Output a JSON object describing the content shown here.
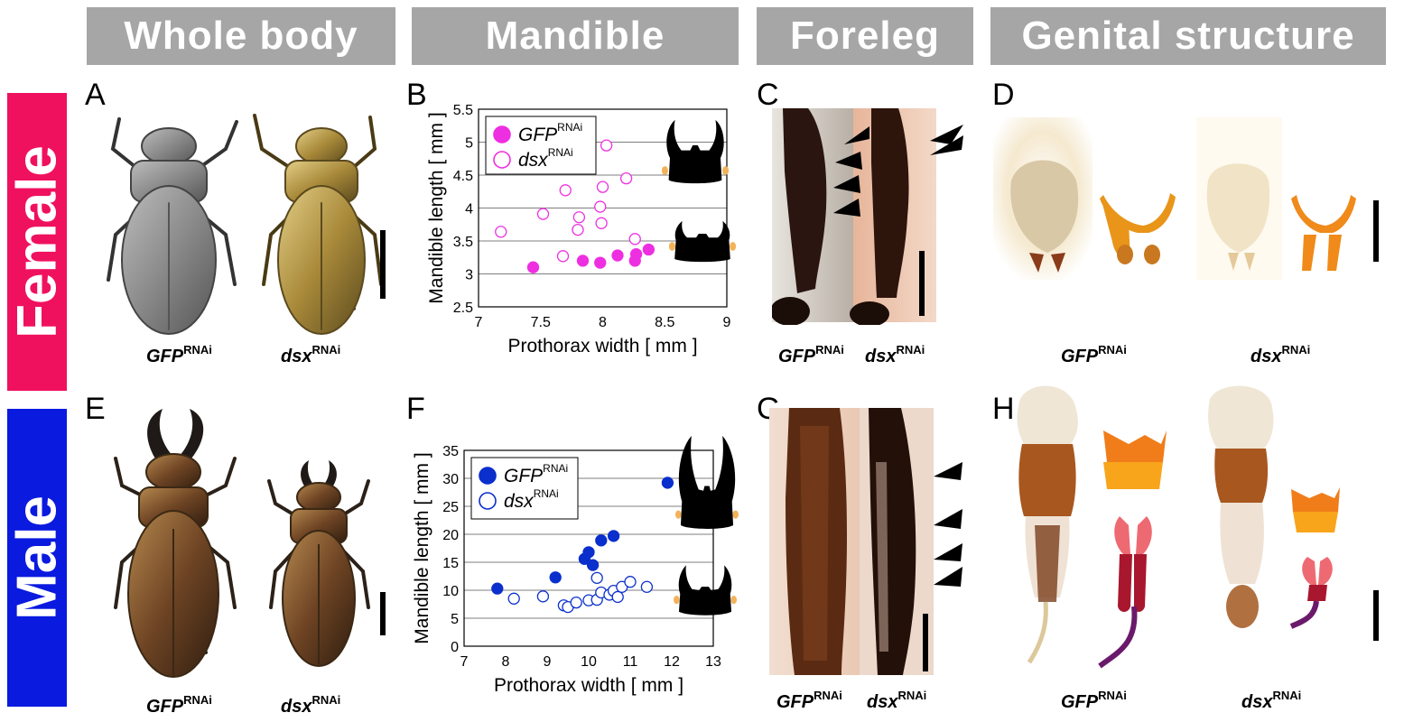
{
  "headers": {
    "whole_body": "Whole body",
    "mandible": "Mandible",
    "foreleg": "Foreleg",
    "genital": "Genital structure"
  },
  "rows": {
    "female": "Female",
    "male": "Male"
  },
  "row_colors": {
    "female": "#f0115e",
    "male": "#0a1adf"
  },
  "panels": [
    "A",
    "B",
    "C",
    "D",
    "E",
    "F",
    "G",
    "H"
  ],
  "gene_labels": {
    "gfp": "GFP",
    "dsx": "dsx",
    "rnai": "RNAi"
  },
  "chart_data": [
    {
      "type": "scatter",
      "panel": "B",
      "xlabel": "Prothorax width [ mm ]",
      "ylabel": "Mandible length [ mm ]",
      "xlim": [
        7,
        9
      ],
      "ylim": [
        2.5,
        5.5
      ],
      "xticks": [
        "7",
        "7.5",
        "8",
        "8.5",
        "9"
      ],
      "yticks": [
        "2.5",
        "3",
        "3.5",
        "4",
        "4.5",
        "5",
        "5.5"
      ],
      "grid": "horizontal",
      "legend_position": "top-left",
      "color": "#ee2fe1",
      "series": [
        {
          "name": "GFP",
          "name_sup": "RNAi",
          "filled": true,
          "x": [
            7.44,
            7.84,
            7.98,
            8.12,
            8.26,
            8.27,
            8.37
          ],
          "y": [
            3.1,
            3.2,
            3.17,
            3.28,
            3.2,
            3.3,
            3.37
          ]
        },
        {
          "name": "dsx",
          "name_sup": "RNAi",
          "filled": false,
          "x": [
            7.18,
            7.52,
            7.68,
            7.7,
            7.8,
            7.81,
            7.98,
            7.99,
            8.0,
            8.03,
            8.19,
            8.26
          ],
          "y": [
            3.64,
            3.91,
            3.27,
            4.27,
            3.67,
            3.86,
            4.02,
            3.77,
            4.32,
            4.95,
            4.45,
            3.53
          ]
        }
      ]
    },
    {
      "type": "scatter",
      "panel": "F",
      "xlabel": "Prothorax width [ mm ]",
      "ylabel": "Mandible length [ mm ]",
      "xlim": [
        7,
        13
      ],
      "ylim": [
        0,
        35
      ],
      "xticks": [
        "7",
        "8",
        "9",
        "10",
        "11",
        "12",
        "13"
      ],
      "yticks": [
        "0",
        "5",
        "10",
        "15",
        "20",
        "25",
        "30",
        "35"
      ],
      "grid": "horizontal",
      "legend_position": "top-left",
      "color": "#0b2fcc",
      "series": [
        {
          "name": "GFP",
          "name_sup": "RNAi",
          "filled": true,
          "x": [
            7.8,
            9.2,
            9.9,
            10.0,
            10.1,
            10.3,
            10.6,
            11.9
          ],
          "y": [
            10.3,
            12.3,
            15.6,
            16.8,
            14.5,
            18.9,
            19.7,
            29.2
          ]
        },
        {
          "name": "dsx",
          "name_sup": "RNAi",
          "filled": false,
          "x": [
            8.2,
            8.9,
            9.4,
            9.5,
            9.7,
            10.0,
            10.2,
            10.2,
            10.3,
            10.5,
            10.6,
            10.7,
            10.8,
            11.0,
            11.4
          ],
          "y": [
            8.5,
            8.9,
            7.3,
            7.0,
            7.8,
            8.2,
            8.3,
            12.2,
            9.6,
            9.2,
            9.9,
            8.8,
            10.6,
            11.5,
            10.6
          ]
        }
      ]
    }
  ]
}
